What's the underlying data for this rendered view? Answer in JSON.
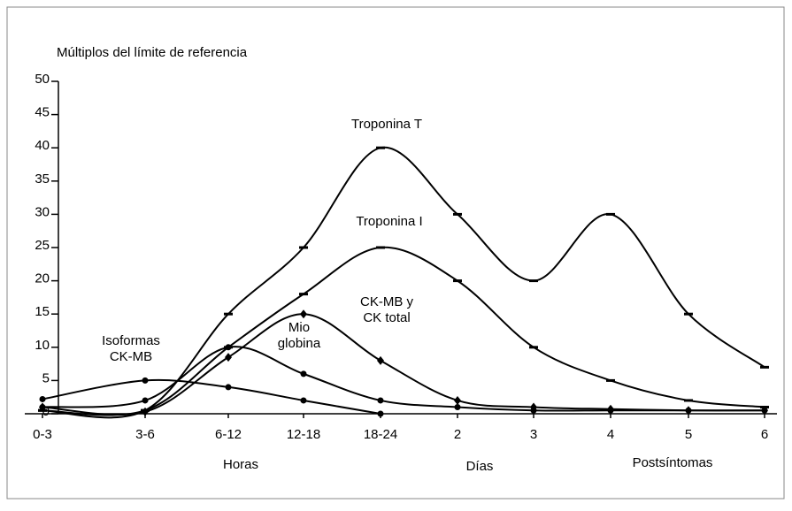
{
  "chart_data": {
    "type": "line",
    "y_axis_label": "Múltiplos del límite de referencia",
    "categories": [
      "0-3",
      "3-6",
      "6-12",
      "12-18",
      "18-24",
      "2",
      "3",
      "4",
      "5",
      "6"
    ],
    "x_group_labels": [
      "Horas",
      "Días",
      "Postsíntomas"
    ],
    "ylim": [
      0,
      50
    ],
    "yticks": [
      0,
      5,
      10,
      15,
      20,
      25,
      30,
      35,
      40,
      45,
      50
    ],
    "color": "#000000",
    "series": [
      {
        "label": [
          "Troponina T"
        ],
        "marker": "dash",
        "values": [
          0.5,
          0.5,
          15,
          25,
          40,
          30,
          20,
          30,
          15,
          7
        ]
      },
      {
        "label": [
          "Troponina I"
        ],
        "marker": "dash",
        "values": [
          0.5,
          0.5,
          10,
          18,
          25,
          20,
          10,
          5,
          2,
          1
        ]
      },
      {
        "label": [
          "CK-MB y",
          "CK total"
        ],
        "marker": "diamond",
        "values": [
          1,
          0.3,
          8.5,
          15,
          8,
          2,
          1,
          0.7,
          0.5,
          0.5
        ]
      },
      {
        "label": [
          "Mio",
          "globina"
        ],
        "marker": "circle",
        "values": [
          1,
          2,
          10,
          6,
          2,
          1,
          0.5,
          0.5,
          0.5,
          0.5
        ]
      },
      {
        "label": [
          "Isoformas",
          "CK-MB"
        ],
        "marker": "circle",
        "values": [
          2.2,
          5,
          4,
          2,
          0,
          null,
          null,
          null,
          null,
          null
        ]
      }
    ]
  }
}
